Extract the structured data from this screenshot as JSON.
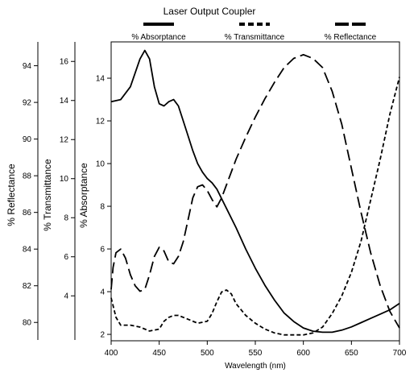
{
  "chart_data": {
    "type": "line",
    "title": "Laser Output Coupler",
    "xlabel": "Wavelength (nm)",
    "xlim": [
      400,
      700
    ],
    "x_ticks": [
      "400",
      "450",
      "500",
      "550",
      "600",
      "650",
      "700"
    ],
    "axes": [
      {
        "key": "reflectance",
        "label": "% Reflectance",
        "ylim": [
          79,
          95.3
        ],
        "ticks": [
          "80",
          "82",
          "84",
          "86",
          "88",
          "90",
          "92",
          "94"
        ]
      },
      {
        "key": "transmittance",
        "label": "% Transmittance",
        "ylim": [
          1.7,
          17
        ],
        "ticks": [
          "4",
          "6",
          "8",
          "10",
          "12",
          "14",
          "16"
        ]
      },
      {
        "key": "absorptance",
        "label": "% Absorptance",
        "ylim": [
          1.7,
          15.7
        ],
        "ticks": [
          "2",
          "4",
          "6",
          "8",
          "10",
          "12",
          "14"
        ]
      }
    ],
    "series": [
      {
        "name": "% Absorptance",
        "axis": "absorptance",
        "style": "solid",
        "color": "#000000",
        "points": [
          [
            400,
            12.9
          ],
          [
            410,
            13.0
          ],
          [
            420,
            13.6
          ],
          [
            430,
            14.9
          ],
          [
            435,
            15.3
          ],
          [
            440,
            14.9
          ],
          [
            445,
            13.6
          ],
          [
            450,
            12.8
          ],
          [
            455,
            12.7
          ],
          [
            460,
            12.9
          ],
          [
            465,
            13.0
          ],
          [
            470,
            12.7
          ],
          [
            475,
            12.0
          ],
          [
            480,
            11.3
          ],
          [
            485,
            10.6
          ],
          [
            490,
            10.0
          ],
          [
            495,
            9.6
          ],
          [
            500,
            9.3
          ],
          [
            505,
            9.1
          ],
          [
            510,
            8.8
          ],
          [
            520,
            7.9
          ],
          [
            530,
            7.0
          ],
          [
            540,
            6.0
          ],
          [
            550,
            5.1
          ],
          [
            560,
            4.3
          ],
          [
            570,
            3.6
          ],
          [
            580,
            3.0
          ],
          [
            590,
            2.6
          ],
          [
            600,
            2.3
          ],
          [
            610,
            2.15
          ],
          [
            620,
            2.1
          ],
          [
            630,
            2.1
          ],
          [
            640,
            2.2
          ],
          [
            650,
            2.35
          ],
          [
            660,
            2.55
          ],
          [
            670,
            2.75
          ],
          [
            680,
            2.95
          ],
          [
            690,
            3.15
          ],
          [
            700,
            3.45
          ]
        ]
      },
      {
        "name": "% Transmittance",
        "axis": "transmittance",
        "style": "short-dash",
        "color": "#000000",
        "points": [
          [
            400,
            3.9
          ],
          [
            405,
            2.9
          ],
          [
            410,
            2.5
          ],
          [
            420,
            2.5
          ],
          [
            430,
            2.4
          ],
          [
            440,
            2.2
          ],
          [
            450,
            2.3
          ],
          [
            455,
            2.7
          ],
          [
            460,
            2.9
          ],
          [
            465,
            3.0
          ],
          [
            470,
            3.0
          ],
          [
            480,
            2.8
          ],
          [
            490,
            2.6
          ],
          [
            500,
            2.7
          ],
          [
            505,
            3.1
          ],
          [
            510,
            3.7
          ],
          [
            515,
            4.2
          ],
          [
            520,
            4.3
          ],
          [
            525,
            4.1
          ],
          [
            530,
            3.6
          ],
          [
            540,
            3.0
          ],
          [
            550,
            2.6
          ],
          [
            560,
            2.3
          ],
          [
            570,
            2.1
          ],
          [
            580,
            2.0
          ],
          [
            590,
            2.0
          ],
          [
            600,
            2.0
          ],
          [
            610,
            2.1
          ],
          [
            620,
            2.4
          ],
          [
            630,
            3.1
          ],
          [
            640,
            4.0
          ],
          [
            650,
            5.2
          ],
          [
            660,
            6.8
          ],
          [
            670,
            8.9
          ],
          [
            680,
            11.0
          ],
          [
            690,
            13.3
          ],
          [
            700,
            15.2
          ]
        ]
      },
      {
        "name": "% Reflectance",
        "axis": "reflectance",
        "style": "long-dash",
        "color": "#000000",
        "points": [
          [
            400,
            81.8
          ],
          [
            402,
            83.0
          ],
          [
            405,
            83.8
          ],
          [
            410,
            84.0
          ],
          [
            415,
            83.5
          ],
          [
            420,
            82.6
          ],
          [
            425,
            82.0
          ],
          [
            430,
            81.7
          ],
          [
            435,
            81.8
          ],
          [
            440,
            82.6
          ],
          [
            445,
            83.6
          ],
          [
            450,
            84.1
          ],
          [
            455,
            83.9
          ],
          [
            460,
            83.3
          ],
          [
            465,
            83.2
          ],
          [
            470,
            83.6
          ],
          [
            475,
            84.4
          ],
          [
            480,
            85.6
          ],
          [
            485,
            86.8
          ],
          [
            490,
            87.4
          ],
          [
            495,
            87.5
          ],
          [
            500,
            87.2
          ],
          [
            505,
            86.7
          ],
          [
            510,
            86.3
          ],
          [
            515,
            86.8
          ],
          [
            520,
            87.5
          ],
          [
            530,
            88.9
          ],
          [
            540,
            90.1
          ],
          [
            550,
            91.2
          ],
          [
            560,
            92.2
          ],
          [
            570,
            93.1
          ],
          [
            580,
            93.9
          ],
          [
            590,
            94.4
          ],
          [
            600,
            94.6
          ],
          [
            610,
            94.4
          ],
          [
            620,
            93.9
          ],
          [
            630,
            92.6
          ],
          [
            640,
            90.8
          ],
          [
            650,
            88.4
          ],
          [
            660,
            86.0
          ],
          [
            670,
            83.8
          ],
          [
            680,
            82.0
          ],
          [
            690,
            80.6
          ],
          [
            700,
            79.7
          ]
        ]
      }
    ],
    "legend": [
      {
        "label": "% Absorptance",
        "style": "solid"
      },
      {
        "label": "% Transmittance",
        "style": "short-dash"
      },
      {
        "label": "% Reflectance",
        "style": "long-dash"
      }
    ],
    "legend_position": "top",
    "grid": false
  }
}
